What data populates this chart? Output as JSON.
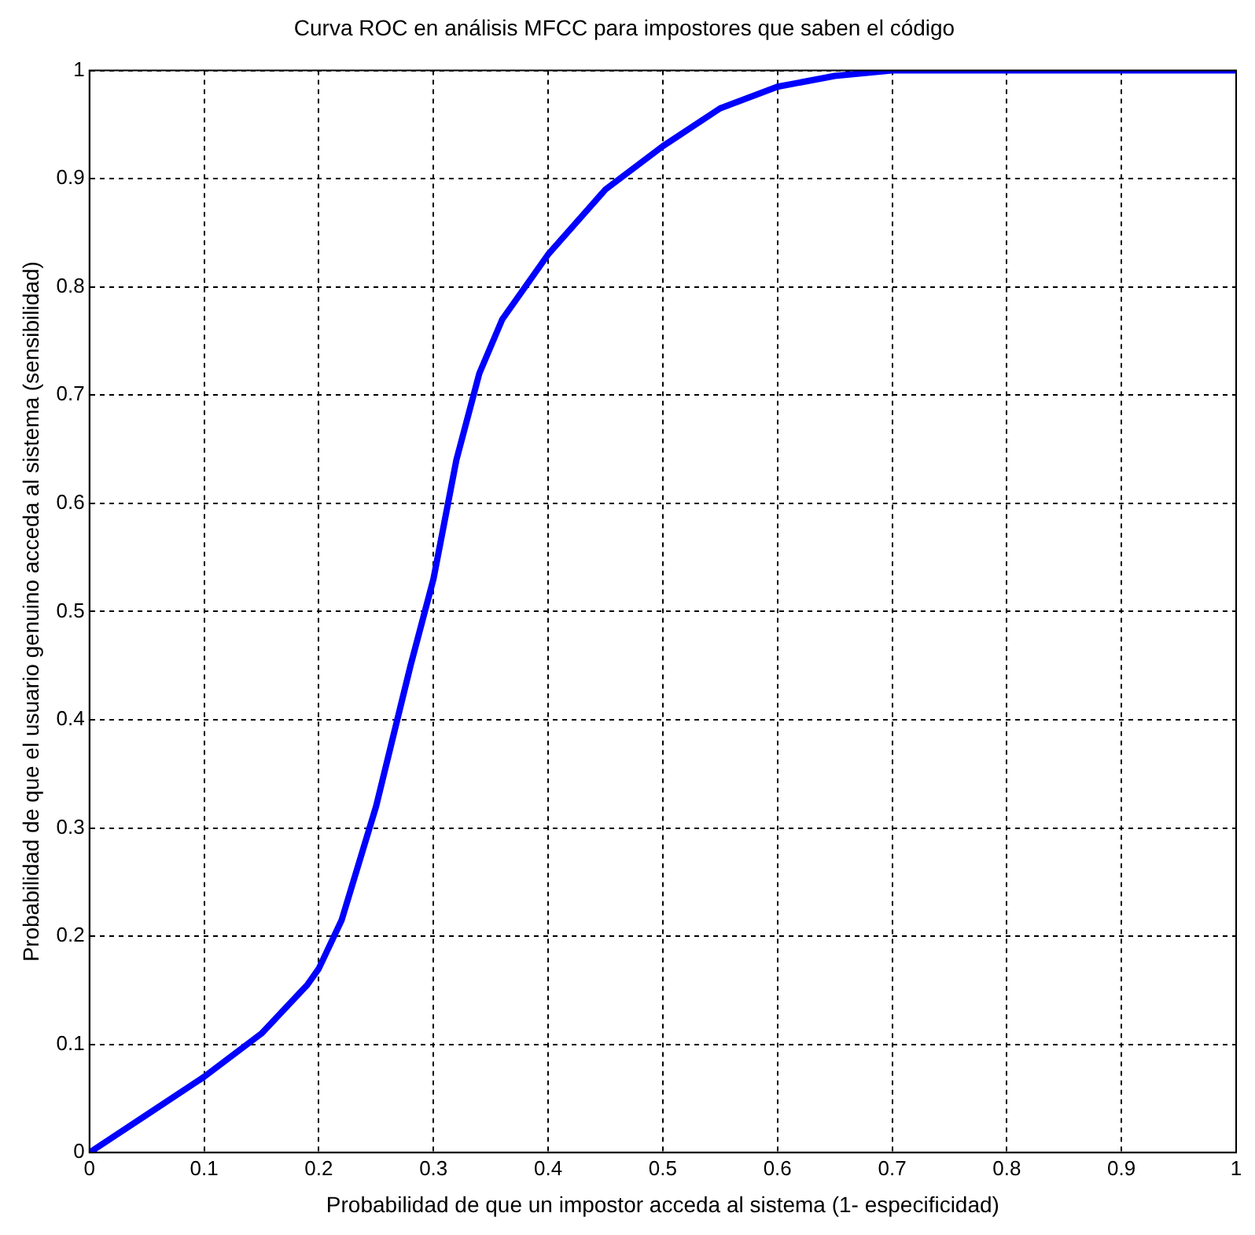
{
  "chart_data": {
    "type": "line",
    "title": "Curva ROC en análisis MFCC para impostores que saben el código",
    "xlabel": "Probabilidad de que un impostor acceda al sistema (1- especificidad)",
    "ylabel": "Probabilidad de que el usuario genuino acceda al sistema (sensibilidad)",
    "x": [
      0,
      0.05,
      0.1,
      0.15,
      0.19,
      0.2,
      0.22,
      0.25,
      0.28,
      0.3,
      0.32,
      0.34,
      0.36,
      0.38,
      0.4,
      0.45,
      0.5,
      0.55,
      0.6,
      0.65,
      0.7,
      0.8,
      0.9,
      1
    ],
    "series": [
      {
        "color": "#0000ff",
        "values": [
          0,
          0.035,
          0.07,
          0.11,
          0.155,
          0.17,
          0.215,
          0.32,
          0.45,
          0.53,
          0.64,
          0.72,
          0.77,
          0.8,
          0.83,
          0.89,
          0.93,
          0.965,
          0.985,
          0.995,
          1,
          1,
          1,
          1
        ]
      }
    ],
    "xlim": [
      0,
      1
    ],
    "ylim": [
      0,
      1
    ],
    "xticks": [
      0,
      0.1,
      0.2,
      0.3,
      0.4,
      0.5,
      0.6,
      0.7,
      0.8,
      0.9,
      1
    ],
    "yticks": [
      0,
      0.1,
      0.2,
      0.3,
      0.4,
      0.5,
      0.6,
      0.7,
      0.8,
      0.9,
      1
    ],
    "grid": true,
    "legend": false,
    "marker": "none",
    "line_style": "solid"
  }
}
